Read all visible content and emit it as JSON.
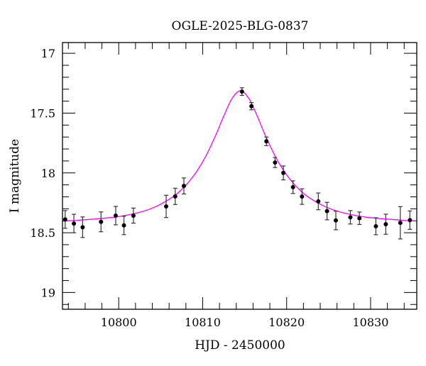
{
  "chart_data": {
    "type": "scatter",
    "title": "OGLE-2025-BLG-0837",
    "xlabel": "HJD - 2450000",
    "ylabel": "I magnitude",
    "xlim": [
      10793.3,
      10835.5
    ],
    "ylim": [
      19.14,
      16.91
    ],
    "y_inverted": true,
    "grid": false,
    "x_ticks": [
      10800,
      10810,
      10820,
      10830
    ],
    "x_tick_labels": [
      "10800",
      "10810",
      "10820",
      "10830"
    ],
    "y_ticks": [
      17,
      17.5,
      18,
      18.5,
      19
    ],
    "y_tick_labels": [
      "17",
      "17.5",
      "18",
      "18.5",
      "19"
    ],
    "series": [
      {
        "kind": "points-with-errorbars",
        "color": "#000000",
        "x": [
          10793.62,
          10794.66,
          10795.7,
          10797.89,
          10799.64,
          10800.62,
          10801.75,
          10805.65,
          10806.73,
          10807.76,
          10814.68,
          10815.81,
          10817.59,
          10818.62,
          10819.61,
          10820.76,
          10821.83,
          10823.77,
          10824.81,
          10825.86,
          10827.59,
          10828.67,
          10830.63,
          10831.81,
          10833.54,
          10834.68
        ],
        "y": [
          18.389,
          18.423,
          18.454,
          18.409,
          18.357,
          18.439,
          18.357,
          18.28,
          18.196,
          18.109,
          17.32,
          17.442,
          17.736,
          17.913,
          18.0,
          18.119,
          18.198,
          18.238,
          18.319,
          18.397,
          18.371,
          18.379,
          18.446,
          18.429,
          18.417,
          18.395
        ],
        "yerr": [
          0.074,
          0.077,
          0.086,
          0.083,
          0.077,
          0.077,
          0.063,
          0.093,
          0.068,
          0.067,
          0.032,
          0.03,
          0.036,
          0.042,
          0.058,
          0.053,
          0.065,
          0.07,
          0.073,
          0.078,
          0.056,
          0.052,
          0.071,
          0.084,
          0.135,
          0.077
        ]
      },
      {
        "kind": "model-curve",
        "color": "#ff00ff",
        "x": [
          10792.5,
          10794.5,
          10799.5,
          10802.5,
          10804.5,
          10806.5,
          10807.5,
          10808.5,
          10809.5,
          10810.5,
          10811.5,
          10812.5,
          10813.5,
          10814.5,
          10815.5,
          10816.5,
          10817.5,
          10818.5,
          10819.5,
          10820.5,
          10821.5,
          10822.5,
          10824.5,
          10826.5,
          10829.5,
          10834.5,
          10836.5
        ],
        "y": [
          18.404,
          18.399,
          18.37,
          18.329,
          18.279,
          18.198,
          18.138,
          18.062,
          17.965,
          17.842,
          17.693,
          17.526,
          17.377,
          17.313,
          17.377,
          17.526,
          17.693,
          17.842,
          17.965,
          18.062,
          18.138,
          18.198,
          18.279,
          18.329,
          18.37,
          18.399,
          18.404
        ]
      }
    ]
  }
}
